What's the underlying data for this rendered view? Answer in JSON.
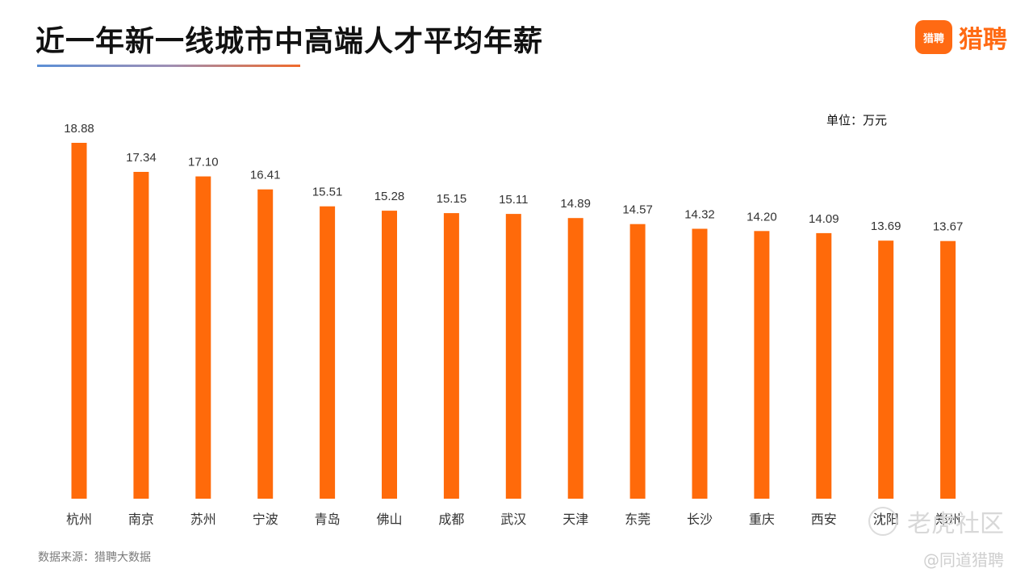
{
  "title": "近一年新一线城市中高端人才平均年薪",
  "logo": {
    "icon_text": "猎聘",
    "text": "猎聘"
  },
  "unit_label": "单位：万元",
  "source_label": "数据来源：猎聘大数据",
  "watermark": {
    "community": "老虎社区",
    "handle": "@同道猎聘"
  },
  "colors": {
    "bar": "#ff6a0a",
    "brand": "#ff6a13"
  },
  "chart_data": {
    "type": "bar",
    "categories": [
      "杭州",
      "南京",
      "苏州",
      "宁波",
      "青岛",
      "佛山",
      "成都",
      "武汉",
      "天津",
      "东莞",
      "长沙",
      "重庆",
      "西安",
      "沈阳",
      "郑州"
    ],
    "values": [
      18.88,
      17.34,
      17.1,
      16.41,
      15.51,
      15.28,
      15.15,
      15.11,
      14.89,
      14.57,
      14.32,
      14.2,
      14.09,
      13.69,
      13.67
    ],
    "unit": "万元",
    "ylim": [
      0,
      19.5
    ],
    "grid": false,
    "data_labels": true
  }
}
